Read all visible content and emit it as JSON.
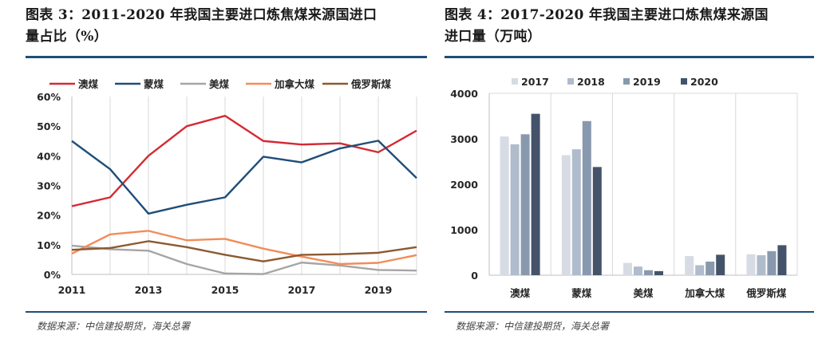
{
  "left": {
    "title_line1": "图表 3：2011-2020 年我国主要进口炼焦煤来源国进口",
    "title_line2": "量占比（%）",
    "source": "数据来源：中信建投期货，海关总署"
  },
  "right": {
    "title_line1": "图表 4：2017-2020 年我国主要进口炼焦煤来源国",
    "title_line2": "进口量（万吨）",
    "source": "数据来源：中信建投期货，海关总署"
  },
  "chart_data": [
    {
      "type": "line",
      "x": [
        2011,
        2012,
        2013,
        2014,
        2015,
        2016,
        2017,
        2018,
        2019,
        2020
      ],
      "x_tick_labels": [
        "2011",
        "2013",
        "2015",
        "2017",
        "2019"
      ],
      "x_tick_values": [
        2011,
        2013,
        2015,
        2017,
        2019
      ],
      "ylim": [
        0,
        60
      ],
      "y_ticks": [
        0,
        10,
        20,
        30,
        40,
        50,
        60
      ],
      "y_tick_labels": [
        "0%",
        "10%",
        "20%",
        "30%",
        "40%",
        "50%",
        "60%"
      ],
      "grid": "vertical",
      "legend": "top",
      "series": [
        {
          "name": "澳煤",
          "color": "#d42a33",
          "values": [
            23,
            26,
            40,
            50,
            53.5,
            45,
            43.8,
            44.2,
            41.2,
            48.5
          ]
        },
        {
          "name": "蒙煤",
          "color": "#1f4e79",
          "values": [
            45,
            35.5,
            20.5,
            23.5,
            26,
            39.7,
            37.8,
            42.5,
            45.1,
            32.5
          ]
        },
        {
          "name": "美煤",
          "color": "#a5a5a5",
          "values": [
            9.7,
            8.5,
            8,
            3.5,
            0.3,
            0.1,
            4,
            3,
            1.5,
            1.3
          ]
        },
        {
          "name": "加拿大煤",
          "color": "#f28c5a",
          "values": [
            7,
            13.5,
            14.7,
            11.5,
            12,
            8.7,
            6,
            3.5,
            3.9,
            6.5
          ]
        },
        {
          "name": "俄罗斯煤",
          "color": "#8b5a30",
          "values": [
            8.3,
            8.9,
            11.2,
            9.2,
            6.6,
            4.4,
            6.6,
            6.8,
            7.3,
            9.2
          ]
        }
      ]
    },
    {
      "type": "bar",
      "categories": [
        "澳煤",
        "蒙煤",
        "美煤",
        "加拿大煤",
        "俄罗斯煤"
      ],
      "ylim": [
        0,
        4000
      ],
      "y_ticks": [
        0,
        1000,
        2000,
        3000,
        4000
      ],
      "y_tick_labels": [
        "0",
        "1000",
        "2000",
        "3000",
        "4000"
      ],
      "grid": "vertical",
      "legend": "top",
      "series": [
        {
          "name": "2017",
          "color": "#d6dbe4",
          "values": [
            3050,
            2640,
            270,
            420,
            460
          ]
        },
        {
          "name": "2018",
          "color": "#b0bccb",
          "values": [
            2880,
            2770,
            190,
            220,
            440
          ]
        },
        {
          "name": "2019",
          "color": "#8999ad",
          "values": [
            3100,
            3390,
            110,
            300,
            530
          ]
        },
        {
          "name": "2020",
          "color": "#44536a",
          "values": [
            3550,
            2380,
            90,
            450,
            660
          ]
        }
      ]
    }
  ]
}
